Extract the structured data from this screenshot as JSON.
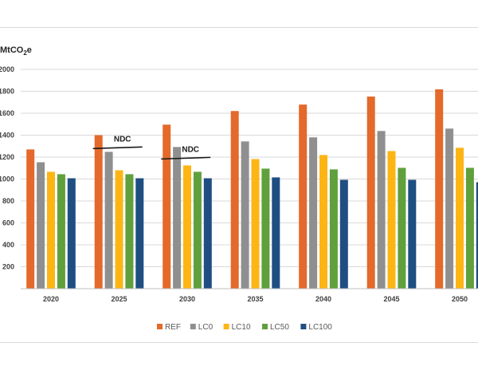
{
  "chart_data": {
    "type": "bar",
    "title": "",
    "ylabel": "MtCO2e",
    "ylabel_main": "MtCO",
    "ylabel_sub": "2",
    "ylabel_suffix": "e",
    "xlabel": "",
    "ylim": [
      0,
      2000
    ],
    "yticks": [
      200,
      400,
      600,
      800,
      1000,
      1200,
      1400,
      1600,
      1800,
      2000
    ],
    "grid": true,
    "legend_position": "bottom",
    "categories": [
      "2020",
      "2025",
      "2030",
      "2035",
      "2040",
      "2045",
      "2050"
    ],
    "series": [
      {
        "name": "REF",
        "color": "#E4692A",
        "values": [
          1270,
          1400,
          1496,
          1620,
          1679,
          1752,
          1818
        ]
      },
      {
        "name": "LC0",
        "color": "#8F8F8F",
        "values": [
          1153,
          1248,
          1292,
          1343,
          1380,
          1438,
          1460
        ]
      },
      {
        "name": "LC10",
        "color": "#FDB515",
        "values": [
          1066,
          1080,
          1124,
          1182,
          1219,
          1255,
          1285
        ]
      },
      {
        "name": "LC50",
        "color": "#5FA03C",
        "values": [
          1044,
          1044,
          1066,
          1095,
          1088,
          1102,
          1102
        ]
      },
      {
        "name": "LC100",
        "color": "#1F4E82",
        "values": [
          1007,
          1007,
          1007,
          1015,
          993,
          993,
          971
        ]
      }
    ],
    "annotations": [
      {
        "text": "NDC",
        "category": "2025",
        "value": 1285
      },
      {
        "text": "NDC",
        "category": "2030",
        "value": 1190
      }
    ]
  }
}
